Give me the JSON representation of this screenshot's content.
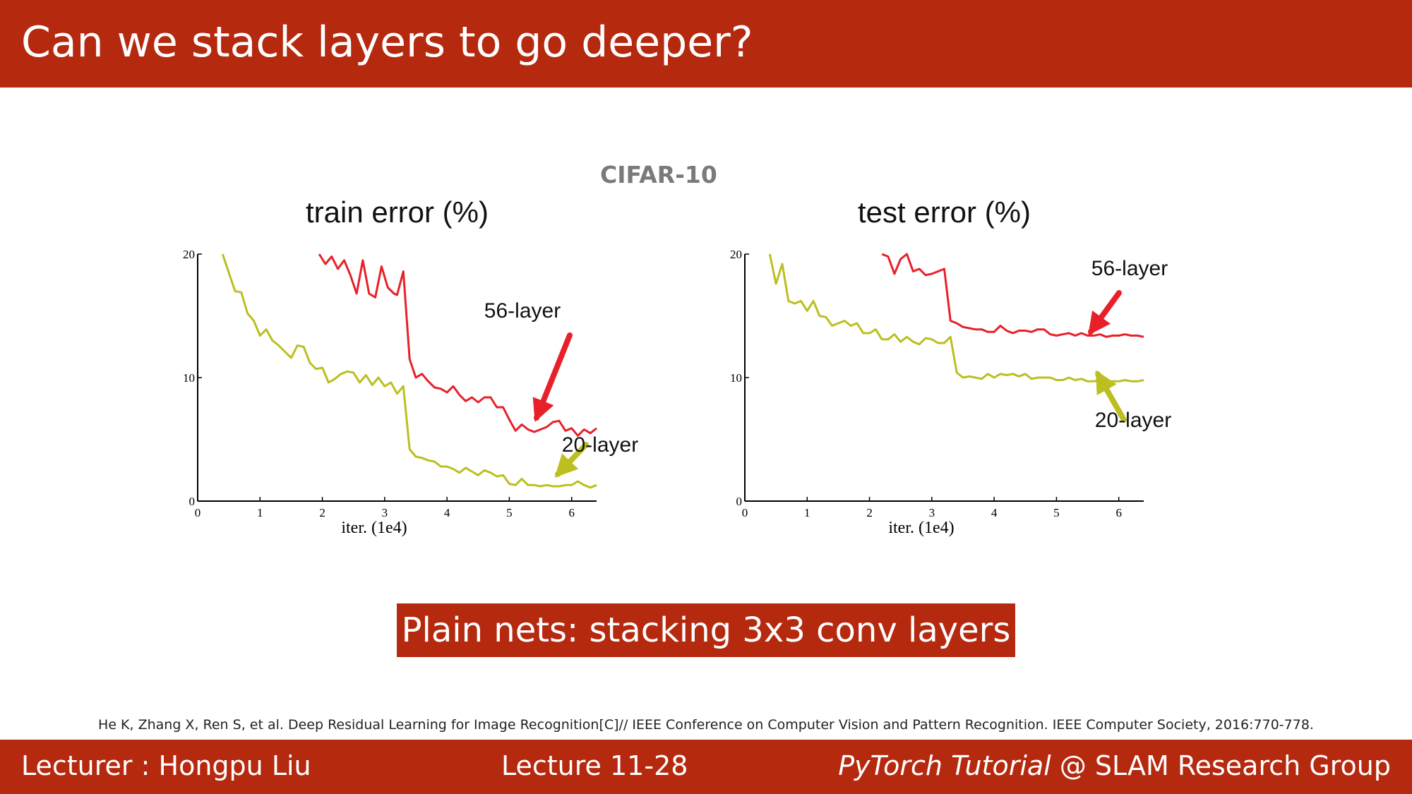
{
  "slide": {
    "title": "Can we stack layers to go deeper?",
    "caption": "Plain nets: stacking 3x3 conv layers",
    "reference": "He K, Zhang X, Ren S, et al. Deep Residual Learning for Image Recognition[C]// IEEE Conference on Computer Vision and Pattern Recognition. IEEE Computer Society, 2016:770-778."
  },
  "footer": {
    "lecturer": "Lecturer : Hongpu Liu",
    "lecture": "Lecture 11-28",
    "course_italic": "PyTorch Tutorial",
    "course_rest": "@ SLAM Research Group"
  },
  "colors": {
    "brand": "#b5290f",
    "layer56": "#e8202a",
    "layer20": "#bcbf1f"
  },
  "figure_title": "CIFAR-10",
  "chart_data": [
    {
      "type": "line",
      "title": "train error (%)",
      "xlabel": "iter. (1e4)",
      "ylabel": "",
      "xlim": [
        0,
        6.4
      ],
      "ylim": [
        0,
        20
      ],
      "xticks": [
        0,
        1,
        2,
        3,
        4,
        5,
        6
      ],
      "yticks": [
        0,
        10,
        20
      ],
      "grid": false,
      "series": [
        {
          "name": "56-layer",
          "color": "#e8202a",
          "x": [
            1.95,
            2.05,
            2.15,
            2.25,
            2.35,
            2.45,
            2.55,
            2.65,
            2.75,
            2.85,
            2.95,
            3.05,
            3.15,
            3.2,
            3.3,
            3.4,
            3.5,
            3.6,
            3.7,
            3.8,
            3.9,
            4.0,
            4.1,
            4.2,
            4.3,
            4.4,
            4.5,
            4.6,
            4.7,
            4.8,
            4.9,
            5.0,
            5.1,
            5.2,
            5.3,
            5.4,
            5.5,
            5.6,
            5.7,
            5.8,
            5.9,
            6.0,
            6.1,
            6.2,
            6.3,
            6.4
          ],
          "y": [
            20.0,
            19.2,
            19.8,
            18.8,
            19.5,
            18.3,
            16.8,
            19.5,
            16.8,
            16.5,
            19.0,
            17.3,
            16.8,
            16.7,
            18.6,
            11.5,
            10.0,
            10.3,
            9.7,
            9.2,
            9.1,
            8.8,
            9.3,
            8.6,
            8.1,
            8.4,
            8.0,
            8.4,
            8.4,
            7.6,
            7.6,
            6.6,
            5.7,
            6.2,
            5.8,
            5.6,
            5.8,
            6.0,
            6.4,
            6.5,
            5.7,
            5.9,
            5.3,
            5.8,
            5.5,
            5.9
          ]
        },
        {
          "name": "20-layer",
          "color": "#bcbf1f",
          "x": [
            0.4,
            0.5,
            0.6,
            0.7,
            0.8,
            0.9,
            1.0,
            1.1,
            1.2,
            1.3,
            1.4,
            1.5,
            1.6,
            1.7,
            1.8,
            1.9,
            2.0,
            2.1,
            2.2,
            2.3,
            2.4,
            2.5,
            2.6,
            2.7,
            2.8,
            2.9,
            3.0,
            3.1,
            3.2,
            3.3,
            3.4,
            3.5,
            3.6,
            3.7,
            3.8,
            3.9,
            4.0,
            4.1,
            4.2,
            4.3,
            4.4,
            4.5,
            4.6,
            4.7,
            4.8,
            4.9,
            5.0,
            5.1,
            5.2,
            5.3,
            5.4,
            5.5,
            5.6,
            5.7,
            5.8,
            5.9,
            6.0,
            6.1,
            6.2,
            6.3,
            6.4
          ],
          "y": [
            20.0,
            18.5,
            17.0,
            16.9,
            15.2,
            14.6,
            13.4,
            13.9,
            13.0,
            12.6,
            12.1,
            11.6,
            12.6,
            12.5,
            11.2,
            10.7,
            10.8,
            9.6,
            9.9,
            10.3,
            10.5,
            10.4,
            9.6,
            10.2,
            9.4,
            10.0,
            9.3,
            9.6,
            8.7,
            9.3,
            4.2,
            3.6,
            3.5,
            3.3,
            3.2,
            2.8,
            2.8,
            2.6,
            2.3,
            2.7,
            2.4,
            2.1,
            2.5,
            2.3,
            2.0,
            2.1,
            1.4,
            1.3,
            1.8,
            1.3,
            1.3,
            1.2,
            1.3,
            1.2,
            1.2,
            1.3,
            1.3,
            1.6,
            1.3,
            1.1,
            1.3
          ]
        }
      ],
      "annotations": [
        {
          "text": "56-layer",
          "series": "56-layer"
        },
        {
          "text": "20-layer",
          "series": "20-layer"
        }
      ]
    },
    {
      "type": "line",
      "title": "test error (%)",
      "xlabel": "iter. (1e4)",
      "ylabel": "",
      "xlim": [
        0,
        6.4
      ],
      "ylim": [
        0,
        20
      ],
      "xticks": [
        0,
        1,
        2,
        3,
        4,
        5,
        6
      ],
      "yticks": [
        0,
        10,
        20
      ],
      "grid": false,
      "series": [
        {
          "name": "56-layer",
          "color": "#e8202a",
          "x": [
            2.2,
            2.3,
            2.4,
            2.5,
            2.6,
            2.7,
            2.8,
            2.9,
            3.0,
            3.1,
            3.2,
            3.3,
            3.4,
            3.5,
            3.6,
            3.7,
            3.8,
            3.9,
            4.0,
            4.1,
            4.2,
            4.3,
            4.4,
            4.5,
            4.6,
            4.7,
            4.8,
            4.9,
            5.0,
            5.1,
            5.2,
            5.3,
            5.4,
            5.5,
            5.6,
            5.7,
            5.8,
            5.9,
            6.0,
            6.1,
            6.2,
            6.3,
            6.4
          ],
          "y": [
            20.0,
            19.8,
            18.4,
            19.6,
            20.0,
            18.6,
            18.8,
            18.3,
            18.4,
            18.6,
            18.8,
            14.6,
            14.4,
            14.1,
            14.0,
            13.9,
            13.9,
            13.7,
            13.7,
            14.2,
            13.8,
            13.6,
            13.8,
            13.8,
            13.7,
            13.9,
            13.9,
            13.5,
            13.4,
            13.5,
            13.6,
            13.4,
            13.6,
            13.4,
            13.4,
            13.5,
            13.3,
            13.4,
            13.4,
            13.5,
            13.4,
            13.4,
            13.3
          ]
        },
        {
          "name": "20-layer",
          "color": "#bcbf1f",
          "x": [
            0.4,
            0.5,
            0.6,
            0.7,
            0.8,
            0.9,
            1.0,
            1.1,
            1.2,
            1.3,
            1.4,
            1.5,
            1.6,
            1.7,
            1.8,
            1.9,
            2.0,
            2.1,
            2.2,
            2.3,
            2.4,
            2.5,
            2.6,
            2.7,
            2.8,
            2.9,
            3.0,
            3.1,
            3.2,
            3.3,
            3.4,
            3.5,
            3.6,
            3.7,
            3.8,
            3.9,
            4.0,
            4.1,
            4.2,
            4.3,
            4.4,
            4.5,
            4.6,
            4.7,
            4.8,
            4.9,
            5.0,
            5.1,
            5.2,
            5.3,
            5.4,
            5.5,
            5.6,
            5.7,
            5.8,
            5.9,
            6.0,
            6.1,
            6.2,
            6.3,
            6.4
          ],
          "y": [
            20.0,
            17.6,
            19.2,
            16.2,
            16.0,
            16.2,
            15.4,
            16.2,
            15.0,
            14.9,
            14.2,
            14.4,
            14.6,
            14.2,
            14.4,
            13.6,
            13.6,
            13.9,
            13.1,
            13.1,
            13.5,
            12.9,
            13.3,
            12.9,
            12.7,
            13.2,
            13.1,
            12.8,
            12.8,
            13.3,
            10.4,
            10.0,
            10.1,
            10.0,
            9.9,
            10.3,
            10.0,
            10.3,
            10.2,
            10.3,
            10.1,
            10.3,
            9.9,
            10.0,
            10.0,
            10.0,
            9.8,
            9.8,
            10.0,
            9.8,
            9.9,
            9.7,
            9.7,
            9.8,
            9.7,
            9.7,
            9.7,
            9.8,
            9.7,
            9.7,
            9.8
          ]
        }
      ],
      "annotations": [
        {
          "text": "56-layer",
          "series": "56-layer"
        },
        {
          "text": "20-layer",
          "series": "20-layer"
        }
      ]
    }
  ]
}
